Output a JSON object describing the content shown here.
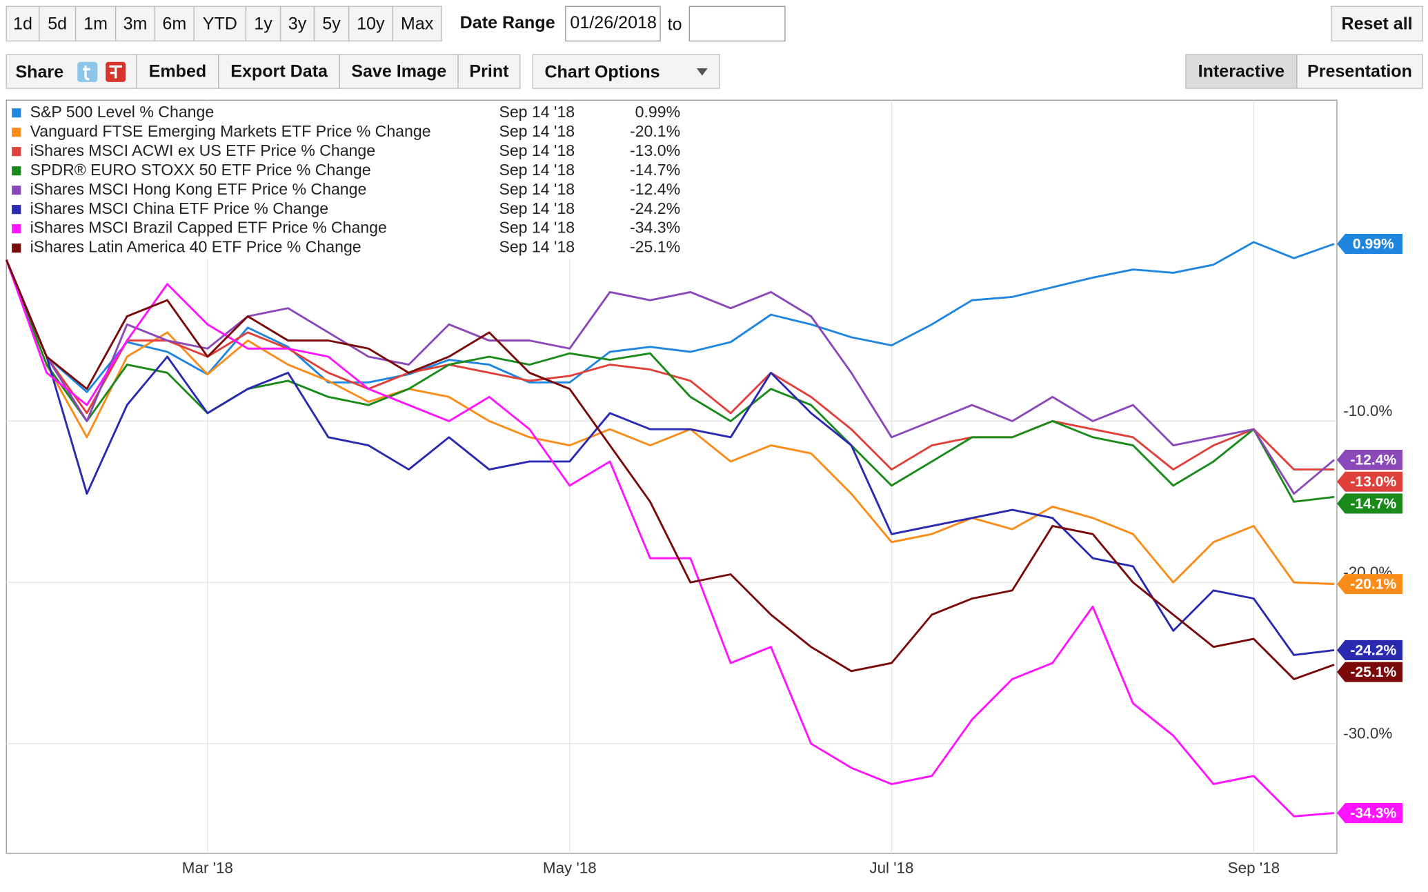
{
  "toolbar": {
    "ranges": [
      "1d",
      "5d",
      "1m",
      "3m",
      "6m",
      "YTD",
      "1y",
      "3y",
      "5y",
      "10y",
      "Max"
    ],
    "date_range_label": "Date Range",
    "date_from": "01/26/2018",
    "to_label": "to",
    "reset": "Reset all",
    "share": "Share",
    "actions": [
      "Embed",
      "Export Data",
      "Save Image",
      "Print"
    ],
    "chart_options": "Chart Options",
    "modes": [
      "Interactive",
      "Presentation"
    ]
  },
  "chart_data": {
    "type": "line",
    "categories": [
      null,
      null,
      null,
      null,
      null,
      "Mar '18",
      null,
      null,
      null,
      null,
      null,
      null,
      null,
      null,
      "May '18",
      null,
      null,
      null,
      null,
      null,
      null,
      null,
      "Jul '18",
      null,
      null,
      null,
      null,
      null,
      null,
      null,
      null,
      "Sep '18",
      null,
      null
    ],
    "ylim": [
      -36.8,
      9.9
    ],
    "yticks": [
      {
        "value": -10,
        "label": "-10.0%"
      },
      {
        "value": -20,
        "label": "-20.0%"
      },
      {
        "value": -30,
        "label": "-30.0%"
      }
    ],
    "grid": true,
    "series": [
      {
        "name": "S&P 500 Level % Change",
        "color": "#1f86e0",
        "date": "Sep 14 '18",
        "values": [
          0,
          -6,
          -8.2,
          -5.1,
          -5.7,
          -7.1,
          -4.2,
          -5.4,
          -7.6,
          -7.6,
          -7.1,
          -6.2,
          -6.5,
          -7.6,
          -7.6,
          -5.7,
          -5.4,
          -5.7,
          -5.1,
          -3.4,
          -4,
          -4.8,
          -5.3,
          -4,
          -2.5,
          -2.3,
          -1.7,
          -1.1,
          -0.6,
          -0.8,
          -0.3,
          1.1,
          0.1,
          0.99
        ],
        "value_labels": [
          null,
          null,
          null,
          null,
          null,
          null,
          null,
          null,
          null,
          null,
          null,
          null,
          null,
          null,
          null,
          null,
          null,
          null,
          null,
          null,
          null,
          null,
          null,
          null,
          null,
          null,
          null,
          null,
          null,
          null,
          null,
          null,
          null,
          "0.99%"
        ]
      },
      {
        "name": "Vanguard FTSE Emerging Markets ETF Price % Change",
        "color": "#fb8c1a",
        "date": "Sep 14 '18",
        "values": [
          0,
          -6.5,
          -11,
          -6,
          -4.5,
          -7.1,
          -5,
          -6.5,
          -7.5,
          -8.8,
          -8,
          -8.5,
          -10,
          -11,
          -11.5,
          -10.5,
          -11.5,
          -10.5,
          -12.5,
          -11.5,
          -12,
          -14.5,
          -17.5,
          -17,
          -16,
          -16.7,
          -15.3,
          -16,
          -17,
          -20,
          -17.5,
          -16.5,
          -20,
          -20.1
        ],
        "value_labels": [
          null,
          null,
          null,
          null,
          null,
          null,
          null,
          null,
          null,
          null,
          null,
          null,
          null,
          null,
          null,
          null,
          null,
          null,
          null,
          null,
          null,
          null,
          null,
          null,
          null,
          null,
          null,
          null,
          null,
          null,
          null,
          null,
          null,
          "-20.1%"
        ]
      },
      {
        "name": "iShares MSCI ACWI ex US ETF Price % Change",
        "color": "#e0403a",
        "date": "Sep 14 '18",
        "values": [
          0,
          -6,
          -9.5,
          -5,
          -5,
          -6,
          -4.5,
          -5.5,
          -7,
          -8,
          -7,
          -6.5,
          -7,
          -7.5,
          -7.2,
          -6.5,
          -6.8,
          -7.5,
          -9.5,
          -7,
          -8.5,
          -10.5,
          -13,
          -11.5,
          -11,
          -11,
          -10,
          -10.5,
          -11,
          -13,
          -11.5,
          -10.5,
          -13,
          -13.0
        ],
        "value_labels": [
          null,
          null,
          null,
          null,
          null,
          null,
          null,
          null,
          null,
          null,
          null,
          null,
          null,
          null,
          null,
          null,
          null,
          null,
          null,
          null,
          null,
          null,
          null,
          null,
          null,
          null,
          null,
          null,
          null,
          null,
          null,
          null,
          null,
          "-13.0%"
        ]
      },
      {
        "name": "SPDR® EURO STOXX 50 ETF Price % Change",
        "color": "#1a8a1a",
        "date": "Sep 14 '18",
        "values": [
          0,
          -6.5,
          -10,
          -6.5,
          -7,
          -9.5,
          -8,
          -7.5,
          -8.5,
          -9,
          -8,
          -6.5,
          -6,
          -6.5,
          -5.8,
          -6.2,
          -5.8,
          -8.5,
          -10,
          -8,
          -9,
          -11.5,
          -14,
          -12.5,
          -11,
          -11,
          -10,
          -11,
          -11.5,
          -14,
          -12.5,
          -10.5,
          -15,
          -14.7
        ],
        "value_labels": [
          null,
          null,
          null,
          null,
          null,
          null,
          null,
          null,
          null,
          null,
          null,
          null,
          null,
          null,
          null,
          null,
          null,
          null,
          null,
          null,
          null,
          null,
          null,
          null,
          null,
          null,
          null,
          null,
          null,
          null,
          null,
          null,
          null,
          "-14.7%"
        ]
      },
      {
        "name": "iShares MSCI Hong Kong ETF Price % Change",
        "color": "#8a48b8",
        "date": "Sep 14 '18",
        "values": [
          0,
          -6,
          -10,
          -4,
          -5,
          -5.5,
          -3.5,
          -3,
          -4.5,
          -6,
          -6.5,
          -4,
          -5,
          -5,
          -5.5,
          -2,
          -2.5,
          -2,
          -3,
          -2,
          -3.5,
          -7,
          -11,
          -10,
          -9,
          -10,
          -8.5,
          -10,
          -9,
          -11.5,
          -11,
          -10.5,
          -14.5,
          -12.4
        ],
        "value_labels": [
          null,
          null,
          null,
          null,
          null,
          null,
          null,
          null,
          null,
          null,
          null,
          null,
          null,
          null,
          null,
          null,
          null,
          null,
          null,
          null,
          null,
          null,
          null,
          null,
          null,
          null,
          null,
          null,
          null,
          null,
          null,
          null,
          null,
          "-12.4%"
        ]
      },
      {
        "name": "iShares MSCI China ETF Price % Change",
        "color": "#2a2ab0",
        "date": "Sep 14 '18",
        "values": [
          0,
          -6,
          -14.5,
          -9,
          -6,
          -9.5,
          -8,
          -7,
          -11,
          -11.5,
          -13,
          -11,
          -13,
          -12.5,
          -12.5,
          -9.5,
          -10.5,
          -10.5,
          -11,
          -7,
          -9.5,
          -11.5,
          -17,
          -16.5,
          -16,
          -15.5,
          -16,
          -18.5,
          -19,
          -23,
          -20.5,
          -21,
          -24.5,
          -24.2
        ],
        "value_labels": [
          null,
          null,
          null,
          null,
          null,
          null,
          null,
          null,
          null,
          null,
          null,
          null,
          null,
          null,
          null,
          null,
          null,
          null,
          null,
          null,
          null,
          null,
          null,
          null,
          null,
          null,
          null,
          null,
          null,
          null,
          null,
          null,
          null,
          "-24.2%"
        ]
      },
      {
        "name": "iShares MSCI Brazil Capped ETF Price % Change",
        "color": "#ff14ff",
        "date": "Sep 14 '18",
        "values": [
          0,
          -7,
          -9,
          -5,
          -1.5,
          -4,
          -5.5,
          -5.5,
          -6,
          -8,
          -9,
          -10,
          -8.5,
          -10.5,
          -14,
          -12.5,
          -18.5,
          -18.5,
          -25,
          -24,
          -30,
          -31.5,
          -32.5,
          -32,
          -28.5,
          -26,
          -25,
          -21.5,
          -27.5,
          -29.5,
          -32.5,
          -32,
          -34.5,
          -34.3
        ],
        "value_labels": [
          null,
          null,
          null,
          null,
          null,
          null,
          null,
          null,
          null,
          null,
          null,
          null,
          null,
          null,
          null,
          null,
          null,
          null,
          null,
          null,
          null,
          null,
          null,
          null,
          null,
          null,
          null,
          null,
          null,
          null,
          null,
          null,
          null,
          "-34.3%"
        ]
      },
      {
        "name": "iShares Latin America 40 ETF Price % Change",
        "color": "#7a0a0a",
        "date": "Sep 14 '18",
        "values": [
          0,
          -6,
          -8,
          -3.5,
          -2.5,
          -6,
          -3.5,
          -5,
          -5,
          -5.5,
          -7,
          -6,
          -4.5,
          -7,
          -8,
          -11.5,
          -15,
          -20,
          -19.5,
          -22,
          -24,
          -25.5,
          -25,
          -22,
          -21,
          -20.5,
          -16.5,
          -17,
          -20,
          -22,
          -24,
          -23.5,
          -26,
          -25.1
        ],
        "value_labels": [
          null,
          null,
          null,
          null,
          null,
          null,
          null,
          null,
          null,
          null,
          null,
          null,
          null,
          null,
          null,
          null,
          null,
          null,
          null,
          null,
          null,
          null,
          null,
          null,
          null,
          null,
          null,
          null,
          null,
          null,
          null,
          null,
          null,
          "-25.1%"
        ]
      }
    ]
  }
}
